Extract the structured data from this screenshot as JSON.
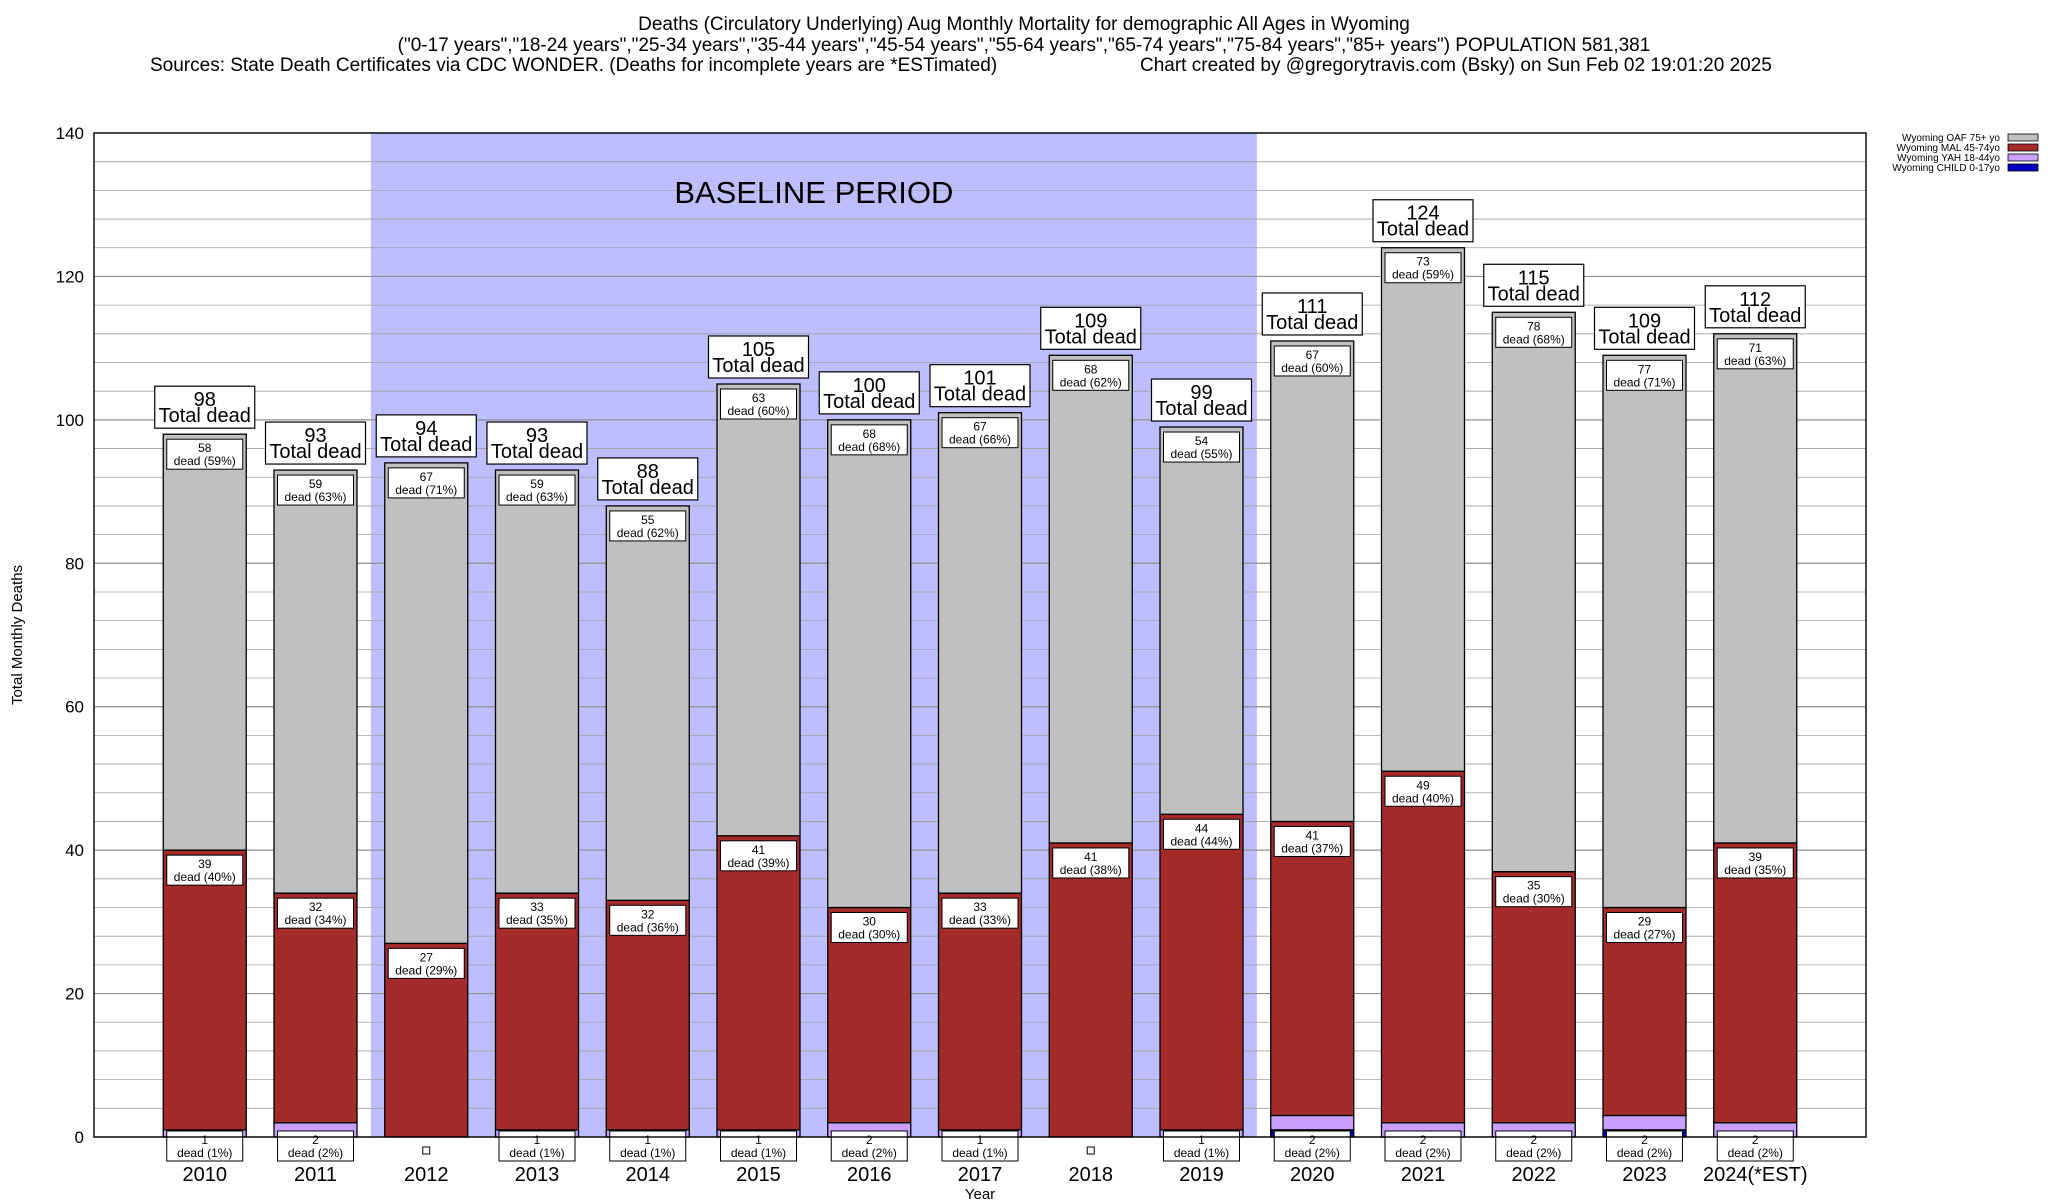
{
  "header": {
    "title": "Deaths (Circulatory Underlying) Aug Monthly Mortality for demographic All Ages in Wyoming",
    "subtitle": "(\"0-17 years\",\"18-24 years\",\"25-34 years\",\"35-44 years\",\"45-54 years\",\"55-64 years\",\"65-74 years\",\"75-84 years\",\"85+ years\") POPULATION 581,381",
    "sources": "Sources: State Death Certificates via CDC WONDER. (Deaths for incomplete years are *ESTimated)",
    "credit": "Chart created by @gregorytravis.com (Bsky) on Sun Feb 02 19:01:20 2025"
  },
  "chart_data": {
    "type": "bar",
    "stacked": true,
    "xlabel": "Year",
    "ylabel": "Total Monthly Deaths",
    "ylim": [
      0,
      140
    ],
    "yticks": [
      0,
      20,
      40,
      60,
      80,
      100,
      120,
      140
    ],
    "grid": true,
    "legend_position": "top-right",
    "categories": [
      "2010",
      "2011",
      "2012",
      "2013",
      "2014",
      "2015",
      "2016",
      "2017",
      "2018",
      "2019",
      "2020",
      "2021",
      "2022",
      "2023",
      "2024(*EST)"
    ],
    "totals": [
      98,
      93,
      94,
      93,
      88,
      105,
      100,
      101,
      109,
      99,
      111,
      124,
      115,
      109,
      112
    ],
    "total_label_suffix": "Total dead",
    "segment_label_word": "dead",
    "baseline": {
      "label": "BASELINE PERIOD",
      "from": "2012",
      "to": "2019",
      "color": "#bebeff"
    },
    "series": [
      {
        "name": "Wyoming CHILD 0-17yo",
        "color": "#0000c0",
        "values": [
          0,
          0,
          0,
          0,
          0,
          0,
          0,
          0,
          0,
          0,
          1,
          0,
          0,
          1,
          0
        ],
        "labels": [
          null,
          null,
          null,
          null,
          null,
          null,
          null,
          null,
          null,
          null,
          null,
          null,
          null,
          null,
          null
        ]
      },
      {
        "name": "Wyoming YAH 18-44yo",
        "color": "#c8a0ff",
        "values": [
          1,
          2,
          0,
          1,
          1,
          1,
          2,
          1,
          0,
          1,
          2,
          2,
          2,
          2,
          2
        ],
        "labels": [
          "1 (1%)",
          "2 (2%)",
          "",
          "1 (1%)",
          "1 (1%)",
          "1 (1%)",
          "2 (2%)",
          "1 (1%)",
          "",
          "1 (1%)",
          "2 (2%)",
          "2 (2%)",
          "2 (2%)",
          "2 (2%)",
          "2 (2%)"
        ]
      },
      {
        "name": "Wyoming MAL 45-74yo",
        "color": "#a52a2a",
        "values": [
          39,
          32,
          27,
          33,
          32,
          41,
          30,
          33,
          41,
          44,
          41,
          49,
          35,
          29,
          39
        ],
        "labels": [
          "39 (40%)",
          "32 (34%)",
          "27 (29%)",
          "33 (35%)",
          "32 (36%)",
          "41 (39%)",
          "30 (30%)",
          "33 (33%)",
          "41 (38%)",
          "44 (44%)",
          "41 (37%)",
          "49 (40%)",
          "35 (30%)",
          "29 (27%)",
          "39 (35%)"
        ]
      },
      {
        "name": "Wyoming OAF 75+ yo",
        "color": "#c0c0c0",
        "values": [
          58,
          59,
          67,
          59,
          55,
          63,
          68,
          67,
          68,
          54,
          67,
          73,
          78,
          77,
          71
        ],
        "labels": [
          "58 (59%)",
          "59 (63%)",
          "67 (71%)",
          "59 (63%)",
          "55 (62%)",
          "63 (60%)",
          "68 (68%)",
          "67 (66%)",
          "68 (62%)",
          "54 (55%)",
          "67 (60%)",
          "73 (59%)",
          "78 (68%)",
          "77 (71%)",
          "71 (63%)"
        ]
      }
    ]
  }
}
